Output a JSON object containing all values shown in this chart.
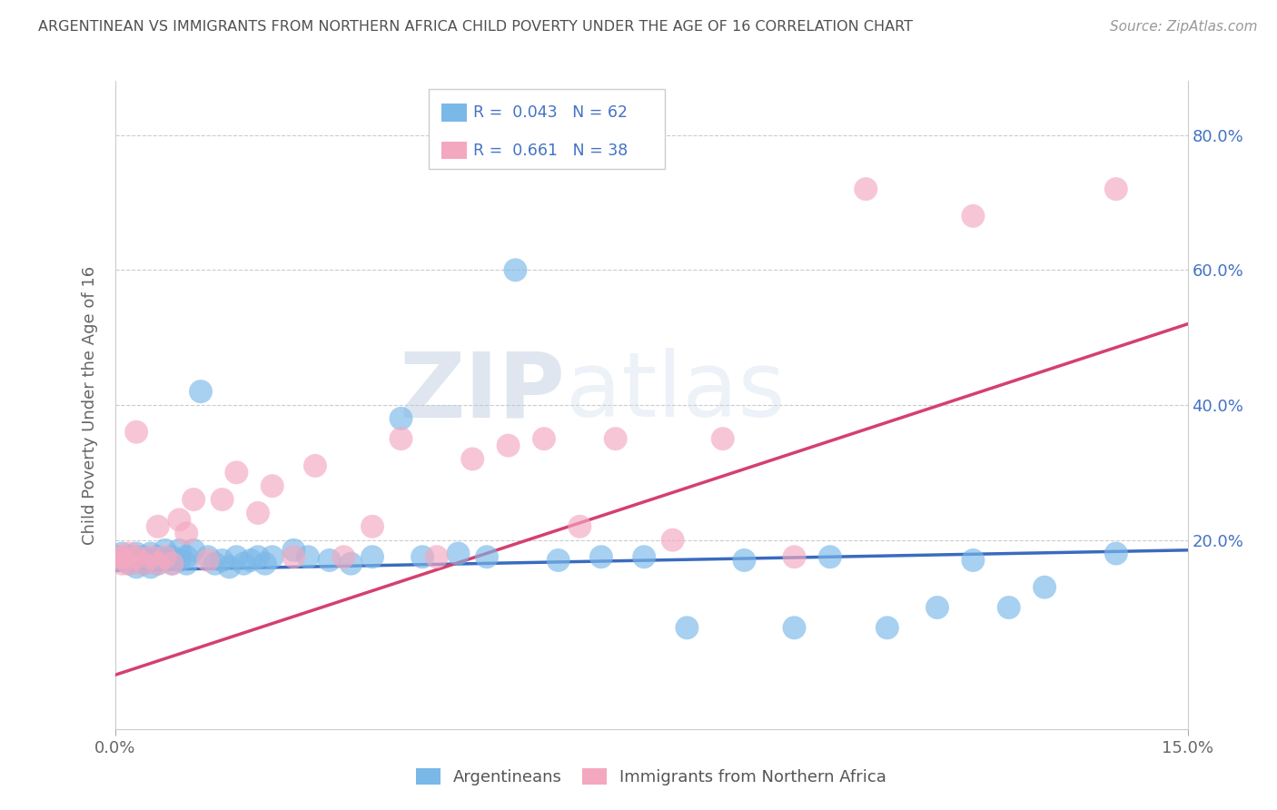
{
  "title": "ARGENTINEAN VS IMMIGRANTS FROM NORTHERN AFRICA CHILD POVERTY UNDER THE AGE OF 16 CORRELATION CHART",
  "source": "Source: ZipAtlas.com",
  "ylabel": "Child Poverty Under the Age of 16",
  "blue_color": "#7ab8e8",
  "pink_color": "#f4a8c0",
  "blue_line_color": "#3a6bbf",
  "pink_line_color": "#d44070",
  "title_color": "#505050",
  "watermark_color": "#ccd8ea",
  "arg_blue_line_y0": 0.155,
  "arg_blue_line_y1": 0.185,
  "nafr_pink_line_y0": 0.0,
  "nafr_pink_line_y1": 0.52,
  "xlim": [
    0.0,
    0.15
  ],
  "ylim": [
    -0.08,
    0.88
  ],
  "ytick_vals": [
    0.0,
    0.2,
    0.4,
    0.6,
    0.8
  ],
  "xtick_vals": [
    0.0,
    0.15
  ],
  "argentinean_x": [
    0.0005,
    0.001,
    0.001,
    0.002,
    0.002,
    0.002,
    0.003,
    0.003,
    0.003,
    0.003,
    0.004,
    0.004,
    0.004,
    0.005,
    0.005,
    0.005,
    0.006,
    0.006,
    0.006,
    0.007,
    0.007,
    0.008,
    0.008,
    0.009,
    0.009,
    0.01,
    0.01,
    0.011,
    0.012,
    0.013,
    0.014,
    0.015,
    0.016,
    0.017,
    0.018,
    0.019,
    0.02,
    0.021,
    0.022,
    0.025,
    0.027,
    0.03,
    0.033,
    0.036,
    0.04,
    0.043,
    0.048,
    0.052,
    0.056,
    0.062,
    0.068,
    0.074,
    0.08,
    0.088,
    0.095,
    0.1,
    0.108,
    0.115,
    0.12,
    0.125,
    0.13,
    0.14
  ],
  "argentinean_y": [
    0.175,
    0.17,
    0.18,
    0.165,
    0.17,
    0.175,
    0.16,
    0.17,
    0.175,
    0.18,
    0.165,
    0.17,
    0.175,
    0.16,
    0.17,
    0.18,
    0.165,
    0.17,
    0.175,
    0.17,
    0.185,
    0.165,
    0.175,
    0.17,
    0.185,
    0.165,
    0.175,
    0.185,
    0.42,
    0.175,
    0.165,
    0.17,
    0.16,
    0.175,
    0.165,
    0.17,
    0.175,
    0.165,
    0.175,
    0.185,
    0.175,
    0.17,
    0.165,
    0.175,
    0.38,
    0.175,
    0.18,
    0.175,
    0.6,
    0.17,
    0.175,
    0.175,
    0.07,
    0.17,
    0.07,
    0.175,
    0.07,
    0.1,
    0.17,
    0.1,
    0.13,
    0.18
  ],
  "northern_africa_x": [
    0.0005,
    0.001,
    0.001,
    0.002,
    0.002,
    0.003,
    0.003,
    0.004,
    0.005,
    0.006,
    0.006,
    0.007,
    0.008,
    0.009,
    0.01,
    0.011,
    0.013,
    0.015,
    0.017,
    0.02,
    0.022,
    0.025,
    0.028,
    0.032,
    0.036,
    0.04,
    0.045,
    0.05,
    0.055,
    0.06,
    0.065,
    0.07,
    0.078,
    0.085,
    0.095,
    0.105,
    0.12,
    0.14
  ],
  "northern_africa_y": [
    0.175,
    0.165,
    0.175,
    0.18,
    0.165,
    0.36,
    0.175,
    0.165,
    0.175,
    0.165,
    0.22,
    0.175,
    0.165,
    0.23,
    0.21,
    0.26,
    0.17,
    0.26,
    0.3,
    0.24,
    0.28,
    0.175,
    0.31,
    0.175,
    0.22,
    0.35,
    0.175,
    0.32,
    0.34,
    0.35,
    0.22,
    0.35,
    0.2,
    0.35,
    0.175,
    0.72,
    0.68,
    0.72
  ]
}
